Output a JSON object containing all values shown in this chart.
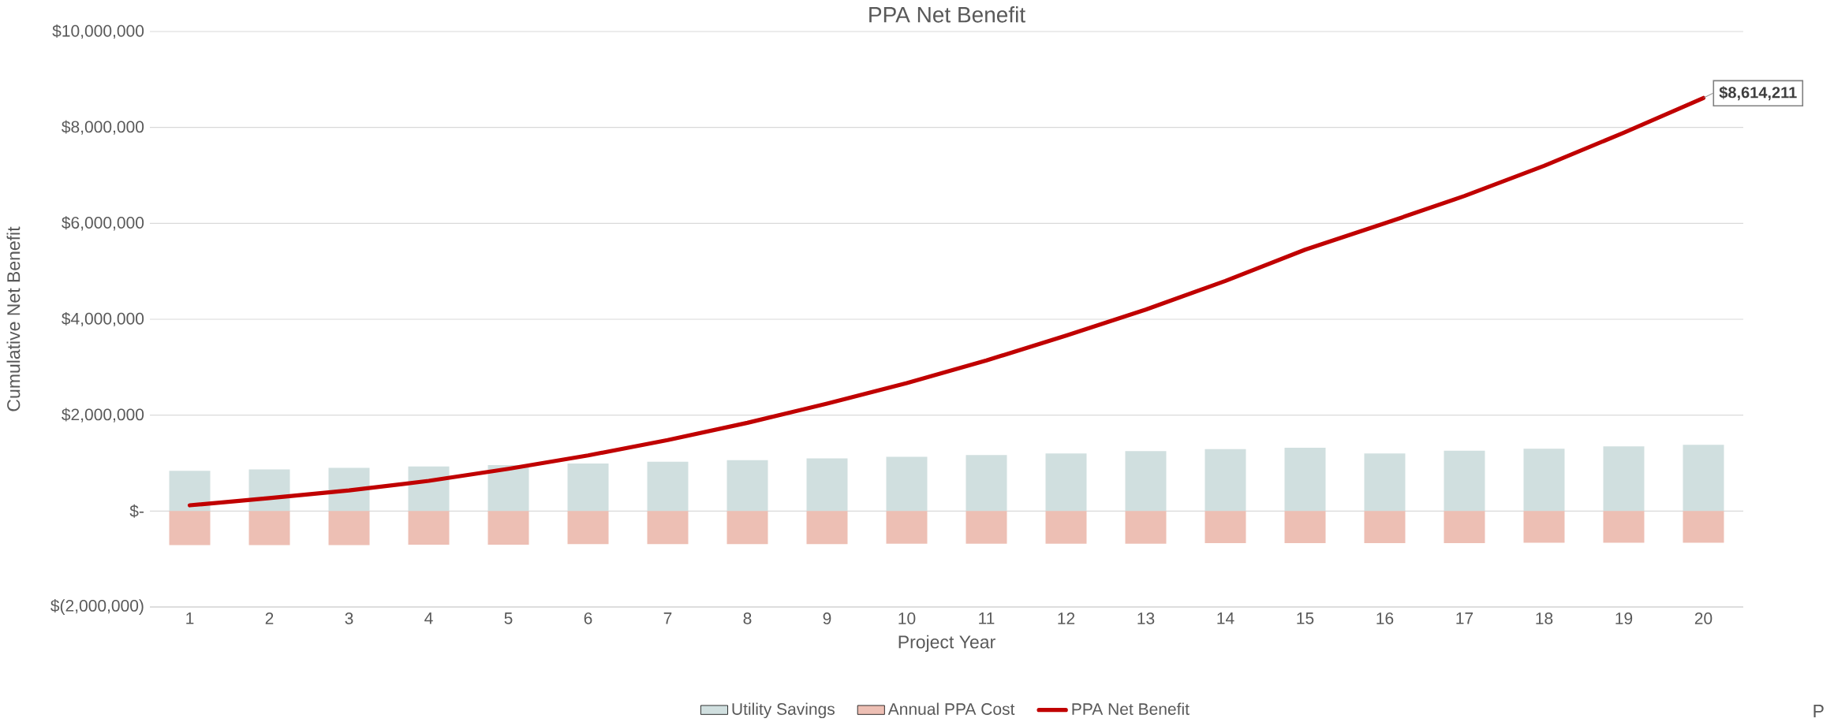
{
  "chart_data": {
    "type": "bar",
    "title": "PPA Net Benefit",
    "xlabel": "Project Year",
    "ylabel": "Cumulative Net Benefit",
    "categories": [
      "1",
      "2",
      "3",
      "4",
      "5",
      "6",
      "7",
      "8",
      "9",
      "10",
      "11",
      "12",
      "13",
      "14",
      "15",
      "16",
      "17",
      "18",
      "19",
      "20"
    ],
    "stacked": true,
    "series": [
      {
        "name": "Utility Savings",
        "color": "#d0dfdf",
        "values": [
          840000,
          870000,
          900000,
          930000,
          960000,
          990000,
          1030000,
          1060000,
          1100000,
          1130000,
          1170000,
          1200000,
          1250000,
          1290000,
          1320000,
          1200000,
          1260000,
          1300000,
          1350000,
          1380000
        ]
      },
      {
        "name": "Annual PPA Cost",
        "color": "#edbfb4",
        "values": [
          -710000,
          -710000,
          -710000,
          -700000,
          -700000,
          -690000,
          -690000,
          -690000,
          -690000,
          -680000,
          -680000,
          -680000,
          -680000,
          -670000,
          -670000,
          -670000,
          -670000,
          -660000,
          -660000,
          -660000
        ]
      },
      {
        "name": "PPA Net Benefit",
        "type": "line",
        "color": "#c00000",
        "values": [
          120000,
          270000,
          430000,
          630000,
          880000,
          1160000,
          1480000,
          1840000,
          2240000,
          2670000,
          3140000,
          3660000,
          4200000,
          4800000,
          5450000,
          6000000,
          6570000,
          7200000,
          7890000,
          8614211
        ],
        "value_labels": [
          null,
          null,
          null,
          null,
          null,
          null,
          null,
          null,
          null,
          null,
          null,
          null,
          null,
          null,
          null,
          null,
          null,
          null,
          null,
          "$8,614,211"
        ]
      }
    ],
    "ylim": [
      -2000000,
      10000000
    ],
    "yticks": [
      {
        "value": -2000000,
        "label": "$(2,000,000)"
      },
      {
        "value": 0,
        "label": "$-"
      },
      {
        "value": 2000000,
        "label": "$2,000,000"
      },
      {
        "value": 4000000,
        "label": "$4,000,000"
      },
      {
        "value": 6000000,
        "label": "$6,000,000"
      },
      {
        "value": 8000000,
        "label": "$8,000,000"
      },
      {
        "value": 10000000,
        "label": "$10,000,000"
      }
    ],
    "grid": "y",
    "legend": "bottom",
    "marker": "none",
    "line_style": "solid",
    "annotations": [
      "P"
    ]
  }
}
